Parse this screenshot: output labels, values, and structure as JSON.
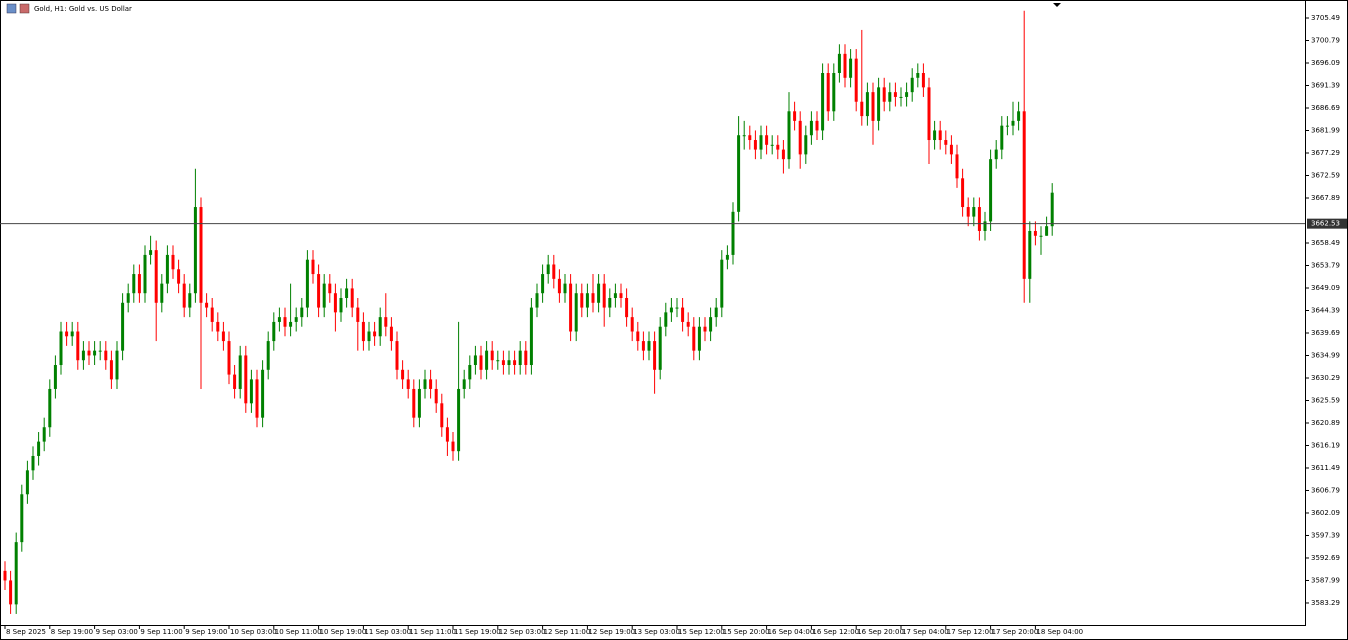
{
  "chart_data": {
    "type": "candlestick",
    "title": "Gold, H1:  Gold vs. US Dollar",
    "categories": [
      "8 Sep 2025",
      null,
      null,
      null,
      null,
      null,
      null,
      null,
      "8 Sep 19:00",
      null,
      null,
      null,
      null,
      null,
      null,
      null,
      "9 Sep 03:00",
      null,
      null,
      null,
      null,
      null,
      null,
      null,
      "9 Sep 11:00",
      null,
      null,
      null,
      null,
      null,
      null,
      null,
      "9 Sep 19:00",
      null,
      null,
      null,
      null,
      null,
      null,
      null,
      "10 Sep 03:00",
      null,
      null,
      null,
      null,
      null,
      null,
      null,
      "10 Sep 11:00",
      null,
      null,
      null,
      null,
      null,
      null,
      null,
      "10 Sep 19:00",
      null,
      null,
      null,
      null,
      null,
      null,
      null,
      "11 Sep 03:00",
      null,
      null,
      null,
      null,
      null,
      null,
      null,
      "11 Sep 11:00",
      null,
      null,
      null,
      null,
      null,
      null,
      null,
      "11 Sep 19:00",
      null,
      null,
      null,
      null,
      null,
      null,
      null,
      "12 Sep 03:00",
      null,
      null,
      null,
      null,
      null,
      null,
      null,
      "12 Sep 11:00",
      null,
      null,
      null,
      null,
      null,
      null,
      null,
      "12 Sep 19:00",
      null,
      null,
      null,
      null,
      null,
      null,
      null,
      "13 Sep 03:00",
      null,
      null,
      null,
      null,
      null,
      null,
      null,
      "15 Sep 12:00",
      null,
      null,
      null,
      null,
      null,
      null,
      null,
      "15 Sep 20:00",
      null,
      null,
      null,
      null,
      null,
      null,
      null,
      "16 Sep 04:00",
      null,
      null,
      null,
      null,
      null,
      null,
      null,
      "16 Sep 12:00",
      null,
      null,
      null,
      null,
      null,
      null,
      null,
      "16 Sep 20:00",
      null,
      null,
      null,
      null,
      null,
      null,
      null,
      "17 Sep 04:00",
      null,
      null,
      null,
      null,
      null,
      null,
      null,
      "17 Sep 12:00",
      null,
      null,
      null,
      null,
      null,
      null,
      null,
      "17 Sep 20:00",
      null,
      null,
      null,
      null,
      null,
      null,
      null,
      "18 Sep 04:00",
      null,
      null,
      null
    ],
    "open": [
      3590,
      3588,
      3583,
      3596,
      3606,
      3611,
      3614,
      3617,
      3620,
      3628,
      3633,
      3640,
      3639,
      3640,
      3634,
      3636,
      3635,
      3636,
      3636,
      3634,
      3630,
      3636,
      3646,
      3648,
      3652,
      3648,
      3656,
      3657,
      3646,
      3650,
      3656,
      3653,
      3650,
      3645,
      3648,
      3666,
      3646,
      3645,
      3642,
      3640,
      3638,
      3631,
      3628,
      3635,
      3625,
      3630,
      3622,
      3632,
      3638,
      3642,
      3643,
      3641,
      3642,
      3643,
      3645,
      3655,
      3652,
      3645,
      3650,
      3648,
      3644,
      3647,
      3649,
      3645,
      3642,
      3638,
      3640,
      3639,
      3643,
      3641,
      3638,
      3632,
      3630,
      3628,
      3622,
      3628,
      3630,
      3628,
      3625,
      3620,
      3617,
      3615,
      3628,
      3630,
      3633,
      3635,
      3632,
      3636,
      3634,
      3634,
      3633,
      3634,
      3633,
      3636,
      3633,
      3645,
      3648,
      3652,
      3654,
      3651,
      3648,
      3650,
      3640,
      3648,
      3645,
      3648,
      3646,
      3650,
      3645,
      3647,
      3648,
      3647,
      3643,
      3640,
      3638,
      3636,
      3638,
      3632,
      3641,
      3644,
      3645,
      3645,
      3642,
      3641,
      3636,
      3641,
      3640,
      3643,
      3645,
      3655,
      3656,
      3665,
      3681,
      3681,
      3680,
      3678,
      3681,
      3679,
      3679,
      3678,
      3676,
      3686,
      3684,
      3677,
      3681,
      3684,
      3682,
      3694,
      3686,
      3694,
      3698,
      3693,
      3697,
      3688,
      3685,
      3690,
      3684,
      3691,
      3688,
      3690,
      3689,
      3689,
      3690,
      3693,
      3694,
      3691,
      3680,
      3682,
      3680,
      3679,
      3677,
      3672,
      3666,
      3664,
      3666,
      3661,
      3663,
      3676,
      3678,
      3683,
      3683,
      3684,
      3686,
      3651,
      3661,
      3660,
      3660,
      3662
    ],
    "high": [
      3592,
      3590,
      3598,
      3608,
      3613,
      3616,
      3619,
      3622,
      3630,
      3635,
      3642,
      3642,
      3642,
      3642,
      3638,
      3638,
      3638,
      3638,
      3638,
      3636,
      3638,
      3648,
      3650,
      3654,
      3654,
      3658,
      3660,
      3659,
      3652,
      3658,
      3658,
      3655,
      3652,
      3650,
      3674,
      3668,
      3648,
      3647,
      3644,
      3642,
      3640,
      3633,
      3637,
      3637,
      3632,
      3632,
      3634,
      3640,
      3644,
      3645,
      3645,
      3650,
      3645,
      3647,
      3657,
      3657,
      3654,
      3652,
      3652,
      3650,
      3649,
      3651,
      3651,
      3647,
      3644,
      3642,
      3642,
      3645,
      3648,
      3643,
      3640,
      3634,
      3632,
      3630,
      3630,
      3632,
      3632,
      3630,
      3627,
      3622,
      3619,
      3642,
      3632,
      3635,
      3637,
      3637,
      3638,
      3638,
      3636,
      3636,
      3636,
      3636,
      3638,
      3638,
      3647,
      3650,
      3654,
      3656,
      3656,
      3653,
      3652,
      3652,
      3650,
      3650,
      3650,
      3652,
      3652,
      3652,
      3649,
      3650,
      3650,
      3649,
      3645,
      3642,
      3640,
      3640,
      3640,
      3643,
      3646,
      3647,
      3647,
      3647,
      3644,
      3643,
      3643,
      3643,
      3645,
      3647,
      3657,
      3658,
      3667,
      3685,
      3684,
      3683,
      3682,
      3683,
      3683,
      3681,
      3681,
      3680,
      3690,
      3688,
      3686,
      3683,
      3686,
      3686,
      3696,
      3696,
      3696,
      3700,
      3700,
      3699,
      3699,
      3703,
      3692,
      3692,
      3693,
      3693,
      3692,
      3692,
      3691,
      3692,
      3695,
      3696,
      3696,
      3693,
      3684,
      3684,
      3682,
      3681,
      3679,
      3674,
      3668,
      3668,
      3668,
      3665,
      3678,
      3680,
      3685,
      3685,
      3688,
      3688,
      3707,
      3663,
      3663,
      3662,
      3664,
      3671
    ],
    "low": [
      3586,
      3581,
      3581,
      3594,
      3604,
      3609,
      3612,
      3615,
      3618,
      3626,
      3631,
      3637,
      3637,
      3632,
      3632,
      3633,
      3633,
      3634,
      3632,
      3628,
      3628,
      3634,
      3644,
      3646,
      3646,
      3646,
      3654,
      3638,
      3644,
      3648,
      3651,
      3648,
      3643,
      3643,
      3646,
      3628,
      3643,
      3640,
      3638,
      3636,
      3629,
      3626,
      3626,
      3623,
      3623,
      3620,
      3620,
      3630,
      3636,
      3640,
      3639,
      3639,
      3640,
      3641,
      3643,
      3650,
      3643,
      3643,
      3646,
      3640,
      3642,
      3645,
      3643,
      3636,
      3636,
      3636,
      3637,
      3637,
      3639,
      3636,
      3630,
      3628,
      3626,
      3620,
      3620,
      3626,
      3626,
      3623,
      3618,
      3614,
      3613,
      3613,
      3626,
      3628,
      3631,
      3630,
      3630,
      3632,
      3632,
      3631,
      3631,
      3631,
      3631,
      3631,
      3631,
      3643,
      3646,
      3650,
      3649,
      3646,
      3646,
      3638,
      3638,
      3643,
      3643,
      3644,
      3644,
      3641,
      3643,
      3645,
      3645,
      3641,
      3638,
      3636,
      3634,
      3634,
      3627,
      3630,
      3639,
      3642,
      3643,
      3640,
      3639,
      3634,
      3634,
      3638,
      3638,
      3641,
      3643,
      3653,
      3654,
      3663,
      3678,
      3678,
      3676,
      3676,
      3677,
      3677,
      3676,
      3673,
      3674,
      3682,
      3674,
      3675,
      3679,
      3680,
      3680,
      3684,
      3684,
      3692,
      3691,
      3691,
      3686,
      3683,
      3683,
      3679,
      3682,
      3686,
      3686,
      3687,
      3687,
      3687,
      3688,
      3691,
      3689,
      3675,
      3678,
      3678,
      3677,
      3675,
      3670,
      3664,
      3662,
      3662,
      3659,
      3659,
      3661,
      3674,
      3676,
      3681,
      3681,
      3682,
      3646,
      3646,
      3658,
      3656,
      3660,
      3660
    ],
    "close": [
      3588,
      3583,
      3596,
      3606,
      3611,
      3614,
      3617,
      3620,
      3628,
      3633,
      3640,
      3639,
      3640,
      3634,
      3636,
      3635,
      3636,
      3636,
      3634,
      3630,
      3636,
      3646,
      3648,
      3652,
      3648,
      3656,
      3657,
      3646,
      3650,
      3656,
      3653,
      3650,
      3645,
      3648,
      3666,
      3646,
      3645,
      3642,
      3640,
      3638,
      3631,
      3628,
      3635,
      3625,
      3630,
      3622,
      3632,
      3638,
      3642,
      3643,
      3641,
      3642,
      3643,
      3645,
      3655,
      3652,
      3645,
      3650,
      3648,
      3644,
      3647,
      3649,
      3645,
      3642,
      3638,
      3640,
      3639,
      3643,
      3641,
      3638,
      3632,
      3630,
      3628,
      3622,
      3628,
      3630,
      3628,
      3625,
      3620,
      3617,
      3615,
      3628,
      3630,
      3633,
      3635,
      3632,
      3636,
      3634,
      3634,
      3633,
      3634,
      3633,
      3636,
      3633,
      3645,
      3648,
      3652,
      3654,
      3651,
      3648,
      3650,
      3640,
      3648,
      3645,
      3648,
      3646,
      3650,
      3645,
      3647,
      3648,
      3647,
      3643,
      3640,
      3638,
      3636,
      3638,
      3632,
      3641,
      3644,
      3645,
      3645,
      3642,
      3641,
      3636,
      3641,
      3640,
      3643,
      3645,
      3655,
      3656,
      3665,
      3681,
      3681,
      3680,
      3678,
      3681,
      3679,
      3679,
      3678,
      3676,
      3686,
      3684,
      3677,
      3681,
      3684,
      3682,
      3694,
      3686,
      3694,
      3698,
      3693,
      3697,
      3688,
      3685,
      3690,
      3684,
      3691,
      3688,
      3690,
      3689,
      3689,
      3690,
      3693,
      3694,
      3691,
      3680,
      3682,
      3680,
      3679,
      3677,
      3672,
      3666,
      3664,
      3666,
      3661,
      3663,
      3676,
      3678,
      3683,
      3683,
      3684,
      3686,
      3651,
      3661,
      3660,
      3660,
      3662,
      3669
    ],
    "up_color": "#008000",
    "down_color": "#ff0000",
    "ylim": [
      3578.69,
      3709.25
    ],
    "yticks": [
      3705.49,
      3700.79,
      3696.09,
      3691.39,
      3686.69,
      3681.99,
      3677.29,
      3672.59,
      3667.89,
      3658.49,
      3653.79,
      3649.09,
      3644.39,
      3639.69,
      3634.99,
      3630.29,
      3625.59,
      3620.89,
      3616.19,
      3611.49,
      3606.79,
      3602.09,
      3597.39,
      3592.69,
      3587.99,
      3583.29
    ],
    "current_price": 3662.53,
    "grid": false
  }
}
